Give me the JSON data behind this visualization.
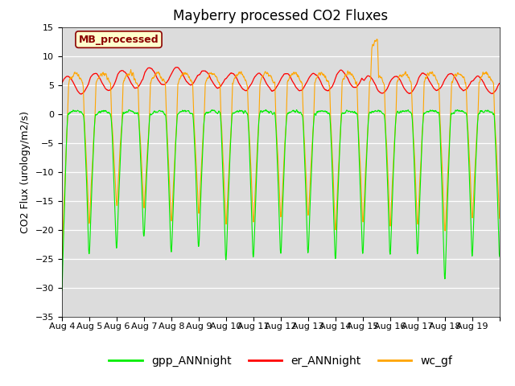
{
  "title": "Mayberry processed CO2 Fluxes",
  "ylabel": "CO2 Flux (urology/m2/s)",
  "ylim": [
    -35,
    15
  ],
  "yticks": [
    -35,
    -30,
    -25,
    -20,
    -15,
    -10,
    -5,
    0,
    5,
    10,
    15
  ],
  "xlabel_dates": [
    "Aug 4",
    "Aug 5",
    "Aug 6",
    "Aug 7",
    "Aug 8",
    "Aug 9",
    "Aug 10",
    "Aug 11",
    "Aug 12",
    "Aug 13",
    "Aug 14",
    "Aug 15",
    "Aug 16",
    "Aug 17",
    "Aug 18",
    "Aug 19"
  ],
  "n_days": 16,
  "points_per_day": 96,
  "legend_label": "MB_processed",
  "legend_fg": "#8B0000",
  "legend_bg": "#FFFFCC",
  "legend_box_color": "#8B0000",
  "line_gpp": "#00EE00",
  "line_er": "#FF0000",
  "line_wc": "#FFA500",
  "line_labels": [
    "gpp_ANNnight",
    "er_ANNnight",
    "wc_gf"
  ],
  "bg_color": "#DCDCDC",
  "title_fontsize": 12,
  "label_fontsize": 9,
  "tick_fontsize": 8,
  "legend_fontsize": 10
}
